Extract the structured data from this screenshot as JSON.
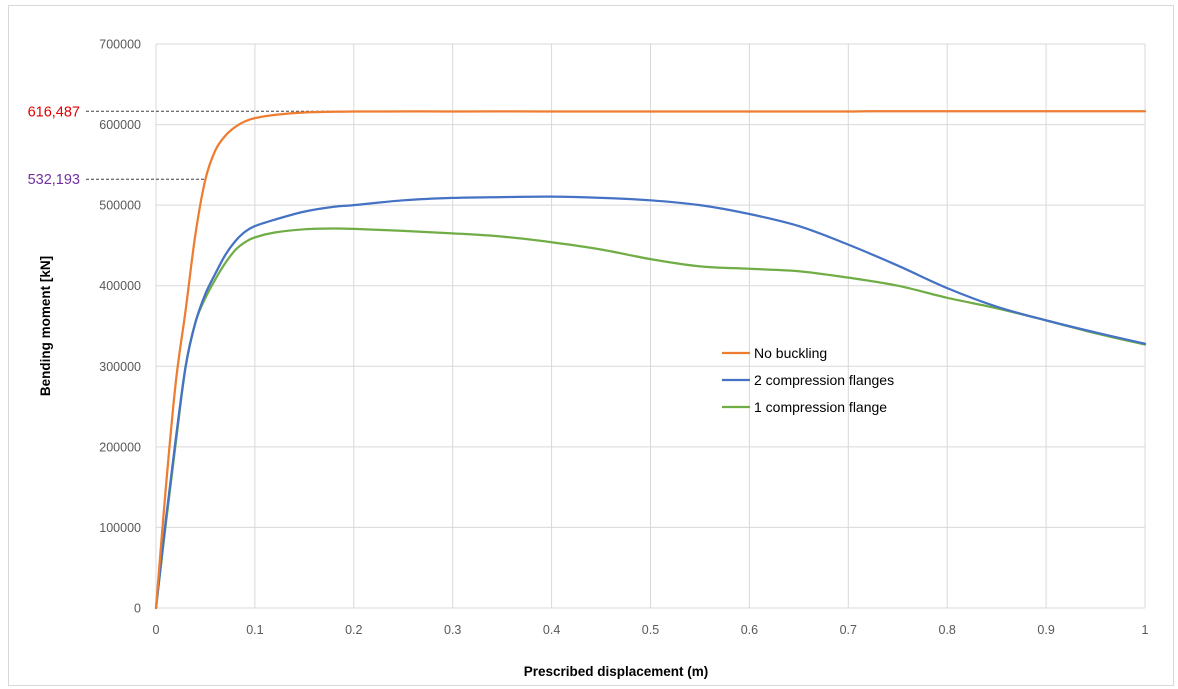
{
  "chart_data": {
    "type": "line",
    "title": "",
    "xlabel": "Prescribed displacement (m)",
    "ylabel": "Bending moment [kN]",
    "xlim": [
      0,
      1
    ],
    "ylim": [
      0,
      700000
    ],
    "grid": true,
    "legend_position": "center-right",
    "x_ticks": [
      "0",
      "0.1",
      "0.2",
      "0.3",
      "0.4",
      "0.5",
      "0.6",
      "0.7",
      "0.8",
      "0.9",
      "1"
    ],
    "y_ticks": [
      "0",
      "100000",
      "200000",
      "300000",
      "400000",
      "500000",
      "600000",
      "700000"
    ],
    "annotations": [
      {
        "label": "616,487",
        "value": 616487,
        "color": "#e00000"
      },
      {
        "label": "532,193",
        "value": 532193,
        "color": "#7030a0"
      }
    ],
    "series": [
      {
        "name": "No buckling",
        "color": "#ed7d31",
        "points": [
          [
            0,
            0
          ],
          [
            0.01,
            150000
          ],
          [
            0.02,
            280000
          ],
          [
            0.03,
            370000
          ],
          [
            0.04,
            465000
          ],
          [
            0.05,
            532193
          ],
          [
            0.06,
            568000
          ],
          [
            0.07,
            586000
          ],
          [
            0.08,
            597000
          ],
          [
            0.09,
            604000
          ],
          [
            0.1,
            608000
          ],
          [
            0.12,
            612000
          ],
          [
            0.15,
            615000
          ],
          [
            0.2,
            616200
          ],
          [
            0.3,
            616300
          ],
          [
            0.4,
            616300
          ],
          [
            0.5,
            616300
          ],
          [
            0.6,
            616300
          ],
          [
            0.7,
            616300
          ],
          [
            0.72,
            616487
          ],
          [
            0.8,
            616487
          ],
          [
            0.9,
            616487
          ],
          [
            1.0,
            616487
          ]
        ]
      },
      {
        "name": "2 compression flanges",
        "color": "#4472c4",
        "points": [
          [
            0,
            0
          ],
          [
            0.01,
            110000
          ],
          [
            0.02,
            210000
          ],
          [
            0.03,
            300000
          ],
          [
            0.04,
            355000
          ],
          [
            0.05,
            390000
          ],
          [
            0.06,
            415000
          ],
          [
            0.07,
            438000
          ],
          [
            0.08,
            455000
          ],
          [
            0.09,
            467000
          ],
          [
            0.1,
            474000
          ],
          [
            0.12,
            482000
          ],
          [
            0.15,
            492000
          ],
          [
            0.18,
            498000
          ],
          [
            0.2,
            500000
          ],
          [
            0.25,
            506000
          ],
          [
            0.3,
            509000
          ],
          [
            0.35,
            510000
          ],
          [
            0.4,
            510500
          ],
          [
            0.45,
            509000
          ],
          [
            0.5,
            506000
          ],
          [
            0.55,
            500000
          ],
          [
            0.6,
            489000
          ],
          [
            0.65,
            474000
          ],
          [
            0.7,
            451000
          ],
          [
            0.75,
            425000
          ],
          [
            0.8,
            397000
          ],
          [
            0.85,
            374000
          ],
          [
            0.9,
            357000
          ],
          [
            0.95,
            342000
          ],
          [
            1.0,
            328000
          ]
        ]
      },
      {
        "name": "1 compression flange",
        "color": "#70ad47",
        "points": [
          [
            0,
            0
          ],
          [
            0.01,
            105000
          ],
          [
            0.02,
            205000
          ],
          [
            0.03,
            300000
          ],
          [
            0.04,
            355000
          ],
          [
            0.05,
            385000
          ],
          [
            0.06,
            408000
          ],
          [
            0.07,
            428000
          ],
          [
            0.08,
            444000
          ],
          [
            0.09,
            454000
          ],
          [
            0.1,
            460000
          ],
          [
            0.12,
            466000
          ],
          [
            0.15,
            470000
          ],
          [
            0.18,
            471000
          ],
          [
            0.2,
            470500
          ],
          [
            0.25,
            468000
          ],
          [
            0.3,
            465000
          ],
          [
            0.35,
            461000
          ],
          [
            0.4,
            454000
          ],
          [
            0.45,
            445000
          ],
          [
            0.5,
            433000
          ],
          [
            0.55,
            424000
          ],
          [
            0.6,
            421000
          ],
          [
            0.65,
            418000
          ],
          [
            0.7,
            410000
          ],
          [
            0.75,
            400000
          ],
          [
            0.8,
            385000
          ],
          [
            0.85,
            372000
          ],
          [
            0.9,
            357000
          ],
          [
            0.95,
            341000
          ],
          [
            1.0,
            327000
          ]
        ]
      }
    ]
  }
}
